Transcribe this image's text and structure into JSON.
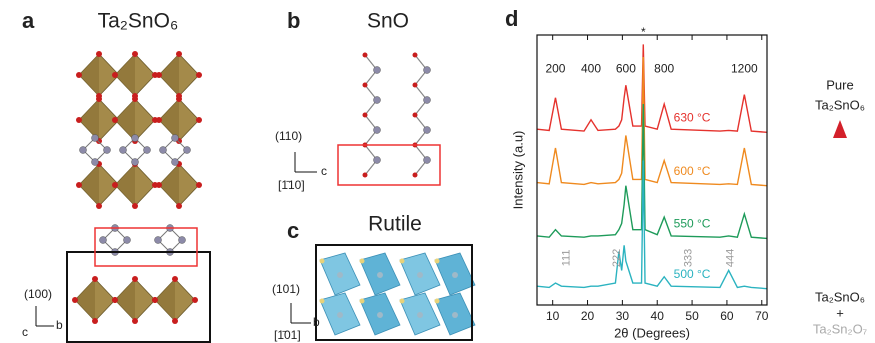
{
  "panels": {
    "a": {
      "label": "a",
      "title": "Ta₂SnO₆",
      "axis_top": "(100)",
      "axis_left": "c",
      "axis_right": "b"
    },
    "b": {
      "label": "b",
      "title": "SnO",
      "axis_top": "(110)",
      "axis_bottom": "[1̄10]",
      "axis_right": "c"
    },
    "c": {
      "label": "c",
      "title": "Rutile",
      "axis_top": "(101)",
      "axis_bottom": "[1̄01]",
      "axis_right": "b"
    },
    "d": {
      "label": "d",
      "arrow_top": [
        "Pure",
        "Ta₂SnO₆"
      ],
      "arrow_bottom": [
        "Ta₂SnO₆",
        "+",
        "Ta₂Sn₂O₇"
      ]
    }
  },
  "chart_data": {
    "type": "line",
    "xlabel": "2θ (Degrees)",
    "ylabel": "Intensity (a.u)",
    "xlim": [
      5.5,
      71.5
    ],
    "xticks": [
      10,
      20,
      30,
      40,
      50,
      60,
      70
    ],
    "ylim": [
      0,
      4.3
    ],
    "x": [
      5.5,
      9,
      10.8,
      12.5,
      19,
      21,
      23,
      28,
      29,
      29.8,
      30.5,
      31,
      33,
      35.5,
      36,
      36.5,
      40,
      42,
      44,
      58,
      60.5,
      63,
      65,
      67,
      71.5
    ],
    "series": [
      {
        "name": "630 °C",
        "color": "#e5322d",
        "values": [
          2.8,
          2.78,
          3.3,
          2.8,
          2.77,
          2.95,
          2.78,
          2.8,
          2.85,
          2.95,
          3.3,
          3.5,
          2.85,
          2.85,
          4.15,
          2.85,
          2.8,
          3.2,
          2.8,
          2.77,
          2.78,
          2.77,
          3.35,
          2.77,
          2.75
        ]
      },
      {
        "name": "600 °C",
        "color": "#ef8a1f",
        "values": [
          1.95,
          1.93,
          2.5,
          1.95,
          1.92,
          1.95,
          1.93,
          1.95,
          2.0,
          2.1,
          2.45,
          2.7,
          2.0,
          2.0,
          3.95,
          2.0,
          1.95,
          2.3,
          1.95,
          1.92,
          1.93,
          1.92,
          2.5,
          1.92,
          1.9
        ]
      },
      {
        "name": "550 °C",
        "color": "#1e9b5a",
        "values": [
          1.1,
          1.08,
          1.2,
          1.1,
          1.08,
          1.1,
          1.1,
          1.12,
          1.2,
          1.3,
          1.6,
          1.9,
          1.2,
          1.2,
          3.2,
          1.2,
          1.12,
          1.4,
          1.1,
          1.08,
          1.1,
          1.08,
          1.45,
          1.08,
          1.06
        ]
      },
      {
        "name": "500 °C",
        "color": "#2bb3c0",
        "values": [
          0.3,
          0.28,
          0.35,
          0.3,
          0.28,
          0.3,
          0.3,
          0.35,
          0.85,
          0.55,
          0.95,
          0.7,
          0.35,
          0.35,
          2.3,
          0.35,
          0.3,
          0.45,
          0.3,
          0.28,
          0.55,
          0.28,
          0.3,
          0.28,
          0.26
        ]
      }
    ],
    "peak_labels": [
      {
        "label": "200",
        "x": 10.8
      },
      {
        "label": "400",
        "x": 21
      },
      {
        "label": "600",
        "x": 31
      },
      {
        "label": "800",
        "x": 42
      },
      {
        "label": "1200",
        "x": 65
      }
    ],
    "substrate_label": {
      "label": "*",
      "x": 36
    },
    "impurity_labels": [
      {
        "label": "111",
        "x": 14
      },
      {
        "label": "222",
        "x": 28.5
      },
      {
        "label": "333",
        "x": 49
      },
      {
        "label": "444",
        "x": 61
      }
    ]
  }
}
